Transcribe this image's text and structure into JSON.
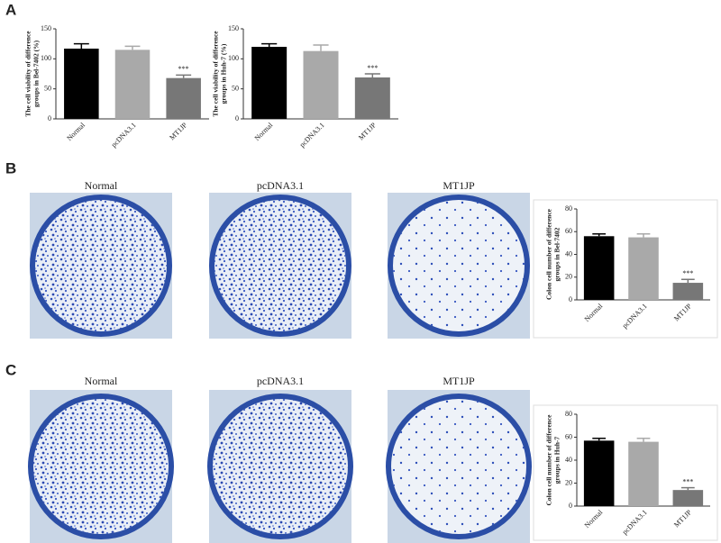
{
  "panel_labels": [
    "A",
    "B",
    "C"
  ],
  "plate_captions": [
    [
      "Normal",
      "pcDNA3.1",
      "MT1JP"
    ],
    [
      "Normal",
      "pcDNA3.1",
      "MT1JP"
    ]
  ],
  "chart_data": [
    {
      "type": "bar",
      "y_label": [
        "The cell viability of difference",
        "groups in Bel-7402 (%)"
      ],
      "categories": [
        "Normal",
        "pcDNA3.1",
        "MT1JP"
      ],
      "values": [
        117,
        115,
        68
      ],
      "errors": [
        8,
        6,
        5
      ],
      "annotations": [
        null,
        null,
        "***"
      ],
      "colors": [
        "#000000",
        "#a9a9a9",
        "#777777"
      ],
      "ylim": [
        0,
        150
      ],
      "yticks": [
        0,
        50,
        100,
        150
      ]
    },
    {
      "type": "bar",
      "y_label": [
        "The cell viability of difference",
        "groups in Huh-7 (%)"
      ],
      "categories": [
        "Normal",
        "pcDNA3.1",
        "MT1JP"
      ],
      "values": [
        120,
        113,
        69
      ],
      "errors": [
        5,
        10,
        6
      ],
      "annotations": [
        null,
        null,
        "***"
      ],
      "colors": [
        "#000000",
        "#a9a9a9",
        "#777777"
      ],
      "ylim": [
        0,
        150
      ],
      "yticks": [
        0,
        50,
        100,
        150
      ]
    },
    {
      "type": "bar",
      "y_label": [
        "Colon cell number of difference",
        "groups in Bel-7402"
      ],
      "categories": [
        "Normal",
        "pcDNA3.1",
        "MT1JP"
      ],
      "values": [
        56,
        55,
        15
      ],
      "errors": [
        2,
        3,
        3
      ],
      "annotations": [
        null,
        null,
        "***"
      ],
      "colors": [
        "#000000",
        "#a9a9a9",
        "#777777"
      ],
      "ylim": [
        0,
        80
      ],
      "yticks": [
        0,
        20,
        40,
        60,
        80
      ]
    },
    {
      "type": "bar",
      "y_label": [
        "Colon cell number of difference",
        "groups in Huh-7"
      ],
      "categories": [
        "Normal",
        "pcDNA3.1",
        "MT1JP"
      ],
      "values": [
        57,
        56,
        14
      ],
      "errors": [
        2,
        3,
        2
      ],
      "annotations": [
        null,
        null,
        "***"
      ],
      "colors": [
        "#000000",
        "#a9a9a9",
        "#777777"
      ],
      "ylim": [
        0,
        80
      ],
      "yticks": [
        0,
        20,
        40,
        60,
        80
      ]
    }
  ]
}
